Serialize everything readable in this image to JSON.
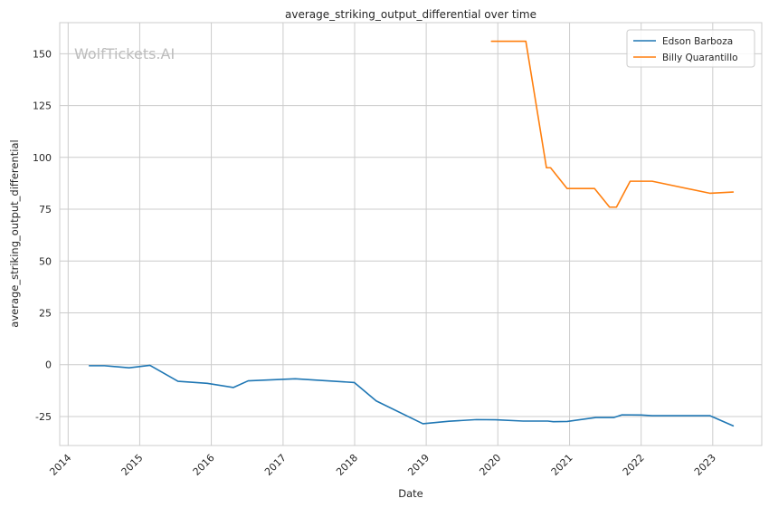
{
  "chart_data": {
    "type": "line",
    "title": "average_striking_output_differential over time",
    "xlabel": "Date",
    "ylabel": "average_striking_output_differential",
    "watermark": "WolfTickets.AI",
    "x_ticks": [
      "2014",
      "2015",
      "2016",
      "2017",
      "2018",
      "2019",
      "2020",
      "2021",
      "2022",
      "2023"
    ],
    "y_ticks": [
      -25,
      0,
      25,
      50,
      75,
      100,
      125,
      150
    ],
    "xlim": [
      "2013-11-19",
      "2023-09-08"
    ],
    "ylim": [
      -39,
      165
    ],
    "grid": true,
    "legend_position": "top-right",
    "series": [
      {
        "name": "Edson Barboza",
        "color": "#1f77b4",
        "points": [
          [
            "2014-04-19",
            -0.5
          ],
          [
            "2014-07-05",
            -0.5
          ],
          [
            "2014-11-08",
            -1.5
          ],
          [
            "2015-02-22",
            -0.3
          ],
          [
            "2015-07-15",
            -8
          ],
          [
            "2015-12-11",
            -9
          ],
          [
            "2016-04-23",
            -11
          ],
          [
            "2016-07-07",
            -7.8
          ],
          [
            "2017-03-04",
            -6.8
          ],
          [
            "2017-12-30",
            -8.6
          ],
          [
            "2018-04-21",
            -17.5
          ],
          [
            "2018-12-15",
            -28.5
          ],
          [
            "2019-04-27",
            -27.3
          ],
          [
            "2019-09-14",
            -26.5
          ],
          [
            "2019-12-21",
            -26.6
          ],
          [
            "2020-05-09",
            -27.2
          ],
          [
            "2020-09-12",
            -27.2
          ],
          [
            "2020-10-10",
            -27.5
          ],
          [
            "2020-12-20",
            -27.4
          ],
          [
            "2021-05-15",
            -25.5
          ],
          [
            "2021-08-14",
            -25.5
          ],
          [
            "2021-09-25",
            -24.2
          ],
          [
            "2022-01-01",
            -24.3
          ],
          [
            "2022-02-26",
            -24.6
          ],
          [
            "2022-12-17",
            -24.6
          ],
          [
            "2023-04-15",
            -29.5
          ]
        ]
      },
      {
        "name": "Billy Quarantillo",
        "color": "#ff7f0e",
        "points": [
          [
            "2019-11-30",
            156
          ],
          [
            "2020-05-23",
            156
          ],
          [
            "2020-09-05",
            95
          ],
          [
            "2020-09-26",
            95
          ],
          [
            "2020-12-19",
            85
          ],
          [
            "2021-05-08",
            85
          ],
          [
            "2021-07-24",
            76
          ],
          [
            "2021-08-28",
            76
          ],
          [
            "2021-11-06",
            88.5
          ],
          [
            "2022-02-26",
            88.5
          ],
          [
            "2022-12-17",
            82.7
          ],
          [
            "2023-04-15",
            83.3
          ]
        ]
      }
    ]
  }
}
